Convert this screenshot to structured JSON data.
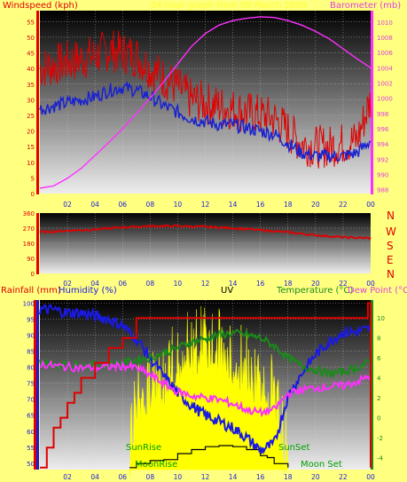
{
  "title": "24 hour graph from 09 March 2009",
  "colors": {
    "background": "#ffff80",
    "wind": "#e00000",
    "gust": "#ff1010",
    "avg": "#1a22d0",
    "baro": "#ff30ff",
    "humidity": "#1a1ae0",
    "temp": "#1a8a1a",
    "dew": "#ff30ff",
    "uv": "#ffff00",
    "solar": "#ffffff",
    "rain": "#e00000",
    "sunmoon": "#00a000"
  },
  "labels": {
    "windspeed": "Windspeed (kph)",
    "barometer": "Barometer (mb)",
    "rainfall": "Rainfall (mm)",
    "humidity": "Humidity (%)",
    "uv": "UV",
    "temperature": "Temperature (°C)",
    "dewpoint": "Dew Point (°C)",
    "sunrise": "SunRise",
    "sunset": "SunSet",
    "moonrise": "MoonRise",
    "moonset": "Moon Set",
    "compass": [
      "N",
      "W",
      "S",
      "E",
      "N"
    ]
  },
  "chart_data": [
    {
      "type": "line",
      "name": "wind_barometer",
      "x_ticks": [
        "02",
        "04",
        "06",
        "08",
        "10",
        "12",
        "14",
        "16",
        "18",
        "20",
        "22",
        "00"
      ],
      "y_left_ticks": [
        0,
        5,
        10,
        15,
        20,
        25,
        30,
        35,
        40,
        45,
        50,
        55
      ],
      "y_right_ticks": [
        988,
        990,
        992,
        994,
        996,
        998,
        1000,
        1002,
        1004,
        1006,
        1008,
        1010
      ],
      "ylim_left": [
        0,
        58.5
      ],
      "ylim_right": [
        987.5,
        1011.5
      ],
      "series": [
        {
          "name": "Windspeed (kph)",
          "axis": "left",
          "x": [
            0,
            1,
            2,
            3,
            4,
            5,
            6,
            7,
            8,
            9,
            10,
            11,
            12,
            13,
            14,
            15,
            16,
            17,
            18,
            19,
            20,
            21,
            22,
            23,
            24
          ],
          "values": [
            40,
            41,
            42,
            43,
            44,
            46,
            45,
            44,
            40,
            37,
            34,
            30,
            29,
            28,
            27,
            26,
            25,
            24,
            20,
            16,
            15,
            15,
            16,
            17,
            30
          ]
        },
        {
          "name": "Average",
          "axis": "left",
          "x": [
            0,
            1,
            2,
            3,
            4,
            5,
            6,
            7,
            8,
            9,
            10,
            11,
            12,
            13,
            14,
            15,
            16,
            17,
            18,
            19,
            20,
            21,
            22,
            23,
            24
          ],
          "values": [
            27,
            28,
            29,
            30,
            31,
            33,
            34,
            33,
            31,
            28,
            26,
            24,
            23,
            22,
            22,
            21,
            20,
            19,
            16,
            13,
            12,
            12,
            12,
            13,
            17
          ]
        },
        {
          "name": "Barometer (mb)",
          "axis": "right",
          "x": [
            0,
            1,
            2,
            3,
            4,
            5,
            6,
            7,
            8,
            9,
            10,
            11,
            12,
            13,
            14,
            15,
            16,
            17,
            18,
            19,
            20,
            21,
            22,
            23,
            24
          ],
          "values": [
            988.2,
            988.5,
            989.5,
            990.8,
            992.5,
            994.2,
            996.0,
            998.0,
            1000.0,
            1002.2,
            1004.5,
            1006.8,
            1008.5,
            1009.6,
            1010.2,
            1010.5,
            1010.7,
            1010.6,
            1010.2,
            1009.6,
            1008.8,
            1007.8,
            1006.5,
            1005.2,
            1004.0
          ]
        }
      ]
    },
    {
      "type": "line",
      "name": "wind_direction",
      "x_ticks": [
        "02",
        "04",
        "06",
        "08",
        "10",
        "12",
        "14",
        "16",
        "18",
        "20",
        "22",
        "00"
      ],
      "y_ticks": [
        0,
        90,
        180,
        270,
        360
      ],
      "ylim": [
        0,
        360
      ],
      "series": [
        {
          "name": "Direction",
          "x": [
            0,
            2,
            4,
            6,
            8,
            10,
            12,
            14,
            16,
            18,
            20,
            22,
            24
          ],
          "values": [
            245,
            255,
            262,
            275,
            282,
            282,
            278,
            270,
            258,
            245,
            228,
            215,
            210
          ]
        }
      ]
    },
    {
      "type": "line",
      "name": "rain_humidity_temp",
      "x_ticks": [
        "02",
        "04",
        "06",
        "08",
        "10",
        "12",
        "14",
        "16",
        "18",
        "20",
        "22",
        "00"
      ],
      "y_left_ticks": [
        50,
        55,
        60,
        65,
        70,
        75,
        80,
        85,
        90,
        95,
        100
      ],
      "y_right_ticks": [
        -4,
        -2,
        0,
        2,
        4,
        6,
        8,
        10
      ],
      "ylim_left": [
        48,
        101
      ],
      "ylim_right": [
        -5.2,
        11.8
      ],
      "series": [
        {
          "name": "Humidity (%)",
          "axis": "left",
          "x": [
            0,
            1,
            2,
            3,
            4,
            5,
            6,
            7,
            8,
            9,
            10,
            11,
            12,
            13,
            14,
            15,
            16,
            17,
            18,
            19,
            20,
            21,
            22,
            23,
            24
          ],
          "values": [
            98,
            98,
            97,
            97,
            96,
            95,
            93,
            89,
            83,
            77,
            72,
            68,
            65,
            63,
            61,
            58,
            54,
            56,
            71,
            78,
            84,
            88,
            91,
            91,
            92
          ]
        },
        {
          "name": "Temperature (°C)",
          "axis": "right",
          "x": [
            0,
            1,
            2,
            3,
            4,
            5,
            6,
            7,
            8,
            9,
            10,
            11,
            12,
            13,
            14,
            15,
            16,
            17,
            18,
            19,
            20,
            21,
            22,
            23,
            24
          ],
          "values": [
            5.6,
            5.4,
            5.3,
            5.2,
            5.2,
            5.3,
            5.5,
            5.8,
            6.0,
            6.5,
            7.0,
            7.6,
            7.9,
            8.3,
            8.5,
            8.3,
            8.0,
            7.2,
            6.0,
            5.2,
            4.8,
            4.4,
            4.6,
            5.0,
            5.6
          ]
        },
        {
          "name": "Dew Point (°C)",
          "axis": "right",
          "x": [
            0,
            1,
            2,
            3,
            4,
            5,
            6,
            7,
            8,
            9,
            10,
            11,
            12,
            13,
            14,
            15,
            16,
            17,
            18,
            19,
            20,
            21,
            22,
            23,
            24
          ],
          "values": [
            5.4,
            5.2,
            5.1,
            5.0,
            5.0,
            5.1,
            5.2,
            5.0,
            4.3,
            3.4,
            2.6,
            2.2,
            2.0,
            1.8,
            1.4,
            0.8,
            0.5,
            0.8,
            2.4,
            2.8,
            3.0,
            3.1,
            3.2,
            3.6,
            4.2
          ]
        },
        {
          "name": "Rainfall (mm)",
          "axis": "right",
          "x": [
            0,
            0.5,
            1,
            1.5,
            2,
            2.5,
            3,
            4,
            5,
            6,
            7,
            12,
            18,
            23.5,
            23.8,
            24
          ],
          "values": [
            -5,
            -3,
            -1,
            0,
            1.5,
            2.5,
            4,
            5.5,
            7,
            8,
            10,
            10,
            10,
            10,
            11.5,
            -5
          ]
        },
        {
          "name": "Solar",
          "axis": "right",
          "x": [
            6.5,
            7,
            8,
            9,
            10,
            11,
            12,
            13,
            14,
            15,
            16,
            16.5,
            17,
            18
          ],
          "values": [
            -5,
            -4.6,
            -4.3,
            -4.2,
            -3.6,
            -3.2,
            -2.9,
            -2.8,
            -2.9,
            -3.2,
            -3.8,
            -4.0,
            -4.6,
            -5
          ]
        },
        {
          "name": "UV",
          "axis": "right",
          "x": [
            6.5,
            7,
            8,
            9,
            10,
            11,
            12,
            13,
            14,
            15,
            16,
            17,
            18
          ],
          "values": [
            -5,
            1,
            2,
            3,
            5,
            6,
            6.5,
            6,
            5,
            4,
            3,
            1,
            -5
          ]
        }
      ]
    }
  ]
}
